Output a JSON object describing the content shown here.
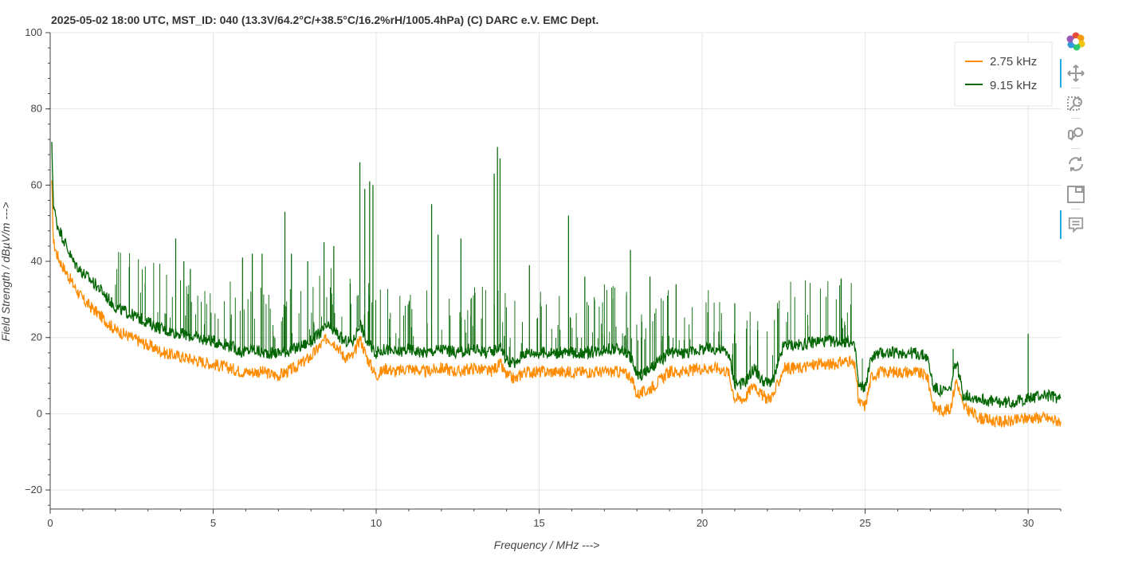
{
  "chart_data": {
    "type": "line",
    "title": "2025-05-02 18:00  UTC,  MST_ID:  040   (13.3V/64.2°C/+38.5°C/16.2%rH/1005.4hPa)   (C) DARC e.V. EMC Dept.",
    "xlabel": "Frequency / MHz --->",
    "ylabel": "Field Strength / dBµV/m --->",
    "xlim": [
      0,
      31
    ],
    "ylim": [
      -25,
      100
    ],
    "x_ticks": [
      "0",
      "5",
      "10",
      "15",
      "20",
      "25",
      "30"
    ],
    "y_ticks": [
      "−20",
      "0",
      "20",
      "40",
      "60",
      "80",
      "100"
    ],
    "grid": true,
    "legend_position": "top-right",
    "series": [
      {
        "name": "2.75 kHz",
        "color": "#ff8c00",
        "x": [
          0.05,
          0.1,
          0.2,
          0.3,
          0.5,
          0.7,
          1.0,
          1.5,
          2.0,
          2.5,
          3.0,
          3.5,
          4.0,
          4.5,
          5.0,
          5.5,
          5.9,
          6.2,
          6.5,
          7.0,
          7.5,
          8.0,
          8.5,
          8.8,
          9.0,
          9.3,
          9.5,
          9.7,
          10.0,
          10.3,
          10.6,
          11.0,
          11.5,
          12.0,
          12.5,
          13.0,
          13.5,
          13.8,
          14.0,
          14.3,
          14.5,
          15.0,
          15.5,
          16.0,
          16.5,
          17.0,
          17.5,
          17.8,
          18.0,
          18.3,
          18.6,
          19.0,
          19.5,
          20.0,
          20.5,
          20.8,
          21.0,
          21.3,
          21.6,
          21.8,
          22.0,
          22.2,
          22.5,
          23.0,
          23.5,
          24.0,
          24.5,
          24.7,
          24.8,
          25.0,
          25.2,
          25.5,
          26.0,
          26.5,
          26.9,
          27.1,
          27.3,
          27.6,
          27.8,
          28.0,
          28.5,
          29.0,
          29.5,
          30.0,
          30.5,
          31.0
        ],
        "y": [
          60,
          45,
          42,
          40,
          37,
          34,
          30,
          26,
          22,
          20,
          18,
          16,
          15,
          14,
          13,
          12,
          11,
          11,
          11,
          10,
          12,
          15,
          20,
          18,
          15,
          15,
          20,
          15,
          10,
          12,
          11,
          12,
          11,
          12,
          11,
          12,
          11,
          13,
          10,
          9,
          11,
          11,
          11,
          11,
          11,
          11,
          11,
          10,
          5,
          6,
          8,
          11,
          11,
          12,
          12,
          11,
          4,
          4,
          8,
          5,
          4,
          5,
          12,
          12,
          13,
          13,
          14,
          12,
          3,
          2,
          10,
          11,
          11,
          11,
          10,
          2,
          1,
          1,
          9,
          2,
          -1,
          -2,
          -2,
          -1,
          -1,
          -2
        ]
      },
      {
        "name": "9.15 kHz",
        "color": "#006400",
        "x": [
          0.05,
          0.1,
          0.2,
          0.3,
          0.5,
          0.7,
          1.0,
          1.5,
          2.0,
          2.5,
          3.0,
          3.5,
          4.0,
          4.5,
          5.0,
          5.5,
          5.9,
          6.2,
          6.5,
          7.0,
          7.5,
          8.0,
          8.5,
          8.8,
          9.0,
          9.3,
          9.5,
          9.7,
          10.0,
          10.3,
          10.6,
          11.0,
          11.5,
          12.0,
          12.5,
          13.0,
          13.5,
          13.8,
          14.0,
          14.3,
          14.5,
          15.0,
          15.5,
          16.0,
          16.5,
          17.0,
          17.5,
          17.8,
          18.0,
          18.3,
          18.6,
          19.0,
          19.5,
          20.0,
          20.5,
          20.8,
          21.0,
          21.3,
          21.6,
          21.8,
          22.0,
          22.2,
          22.5,
          23.0,
          23.5,
          24.0,
          24.5,
          24.7,
          24.8,
          25.0,
          25.2,
          25.5,
          26.0,
          26.5,
          26.9,
          27.1,
          27.3,
          27.6,
          27.8,
          28.0,
          28.5,
          29.0,
          29.5,
          30.0,
          30.5,
          31.0
        ],
        "y": [
          70,
          55,
          50,
          48,
          44,
          40,
          37,
          33,
          28,
          26,
          24,
          22,
          21,
          20,
          19,
          18,
          16,
          17,
          16,
          16,
          17,
          19,
          23,
          21,
          19,
          19,
          24,
          19,
          16,
          17,
          16,
          17,
          16,
          17,
          16,
          17,
          16,
          18,
          14,
          13,
          16,
          16,
          16,
          16,
          16,
          17,
          17,
          15,
          10,
          11,
          13,
          16,
          16,
          17,
          17,
          16,
          8,
          8,
          12,
          9,
          8,
          9,
          18,
          18,
          19,
          19,
          19,
          17,
          7,
          7,
          15,
          16,
          16,
          16,
          15,
          7,
          6,
          6,
          14,
          5,
          4,
          3,
          3,
          4,
          5,
          4
        ]
      }
    ]
  },
  "legend": {
    "item_1": "2.75 kHz",
    "item_2": "9.15 kHz"
  },
  "toolbar": {
    "tools": [
      "bokeh-logo-icon",
      "pan-icon",
      "box-zoom-icon",
      "wheel-zoom-icon",
      "reset-icon",
      "save-icon",
      "hover-icon"
    ]
  }
}
